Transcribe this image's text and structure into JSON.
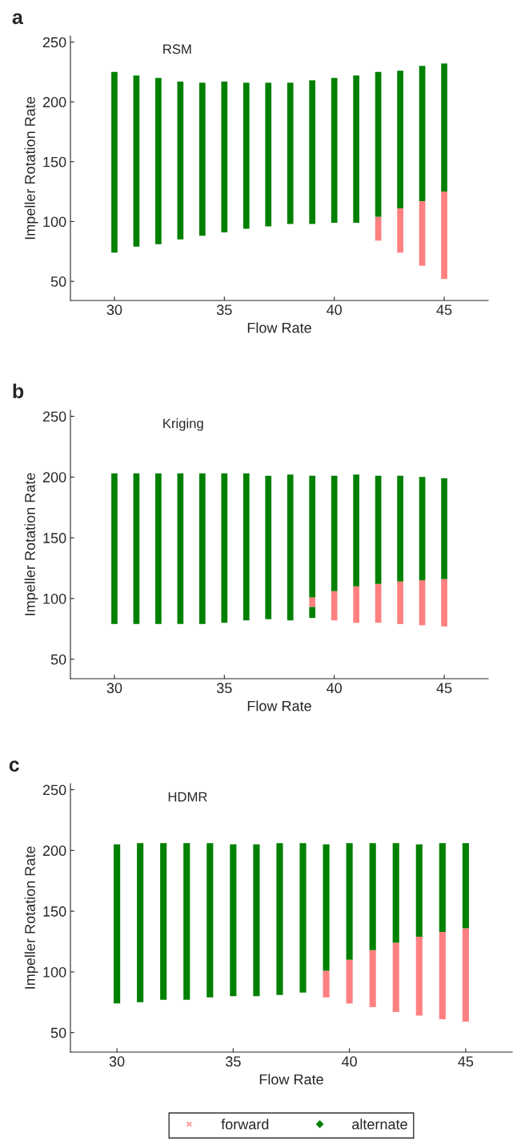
{
  "chart_data": [
    {
      "type": "bar",
      "title": "RSM",
      "xlabel": "Flow Rate",
      "ylabel": "Impeller Rotation Rate",
      "annotations": [
        "a"
      ],
      "xlim": [
        28,
        47
      ],
      "ylim": [
        34,
        255
      ],
      "xticks": [
        30,
        35,
        40,
        45
      ],
      "yticks": [
        50,
        100,
        150,
        200,
        250
      ],
      "grid": false,
      "legend": false,
      "series": [
        {
          "color": "#ff8080",
          "x": [
            42,
            43,
            44,
            45
          ],
          "base": [
            84,
            74,
            63,
            52
          ],
          "values": [
            20,
            37,
            54,
            73
          ]
        },
        {
          "color": "#008000",
          "x": [
            30,
            31,
            32,
            33,
            34,
            35,
            36,
            37,
            38,
            39,
            40,
            41,
            42,
            43,
            44,
            45
          ],
          "base": [
            74,
            79,
            81,
            85,
            88,
            91,
            94,
            96,
            98,
            98,
            99,
            99,
            104,
            111,
            117,
            125
          ],
          "values": [
            151,
            143,
            139,
            132,
            128,
            126,
            122,
            120,
            118,
            120,
            121,
            123,
            121,
            115,
            113,
            107
          ]
        }
      ]
    },
    {
      "type": "bar",
      "title": "Kriging",
      "xlabel": "Flow Rate",
      "ylabel": "Impeller Rotation Rate",
      "annotations": [
        "b"
      ],
      "xlim": [
        28,
        47
      ],
      "ylim": [
        34,
        255
      ],
      "xticks": [
        30,
        35,
        40,
        45
      ],
      "yticks": [
        50,
        100,
        150,
        200,
        250
      ],
      "grid": false,
      "legend": false,
      "series": [
        {
          "color": "#ff8080",
          "x": [
            39,
            40,
            41,
            42,
            43,
            44,
            45
          ],
          "base": [
            93,
            82,
            80,
            80,
            79,
            78,
            77
          ],
          "values": [
            8,
            24,
            30,
            32,
            35,
            37,
            39
          ]
        },
        {
          "color": "#008000",
          "x": [
            30,
            31,
            32,
            33,
            34,
            35,
            36,
            37,
            38,
            39,
            40,
            41,
            42,
            43,
            44,
            45
          ],
          "base": [
            79,
            79,
            79,
            79,
            79,
            80,
            82,
            83,
            82,
            101,
            106,
            110,
            112,
            114,
            115,
            116
          ],
          "values": [
            124,
            124,
            124,
            124,
            124,
            123,
            121,
            118,
            120,
            100,
            95,
            92,
            89,
            87,
            85,
            83
          ]
        },
        {
          "color": "#008000",
          "x": [
            39
          ],
          "base": [
            84
          ],
          "values": [
            9
          ]
        }
      ]
    },
    {
      "type": "bar",
      "title": "HDMR",
      "xlabel": "Flow Rate",
      "ylabel": "Impeller Rotation Rate",
      "annotations": [
        "c"
      ],
      "xlim": [
        28,
        47
      ],
      "ylim": [
        34,
        255
      ],
      "xticks": [
        30,
        35,
        40,
        45
      ],
      "yticks": [
        50,
        100,
        150,
        200,
        250
      ],
      "grid": false,
      "legend": "bottom",
      "series": [
        {
          "name": "forward",
          "color": "#ff8080",
          "marker": "cross",
          "x": [
            39,
            40,
            41,
            42,
            43,
            44,
            45
          ],
          "base": [
            79,
            74,
            71,
            67,
            64,
            61,
            59
          ],
          "values": [
            22,
            36,
            47,
            57,
            65,
            72,
            77
          ]
        },
        {
          "name": "alternate",
          "color": "#008000",
          "marker": "diamond",
          "x": [
            30,
            31,
            32,
            33,
            34,
            35,
            36,
            37,
            38,
            39,
            40,
            41,
            42,
            43,
            44,
            45
          ],
          "base": [
            74,
            75,
            77,
            77,
            79,
            80,
            80,
            81,
            83,
            101,
            110,
            118,
            124,
            129,
            133,
            136
          ],
          "values": [
            131,
            131,
            129,
            129,
            127,
            125,
            125,
            125,
            123,
            104,
            96,
            88,
            82,
            76,
            73,
            70
          ]
        }
      ]
    }
  ]
}
